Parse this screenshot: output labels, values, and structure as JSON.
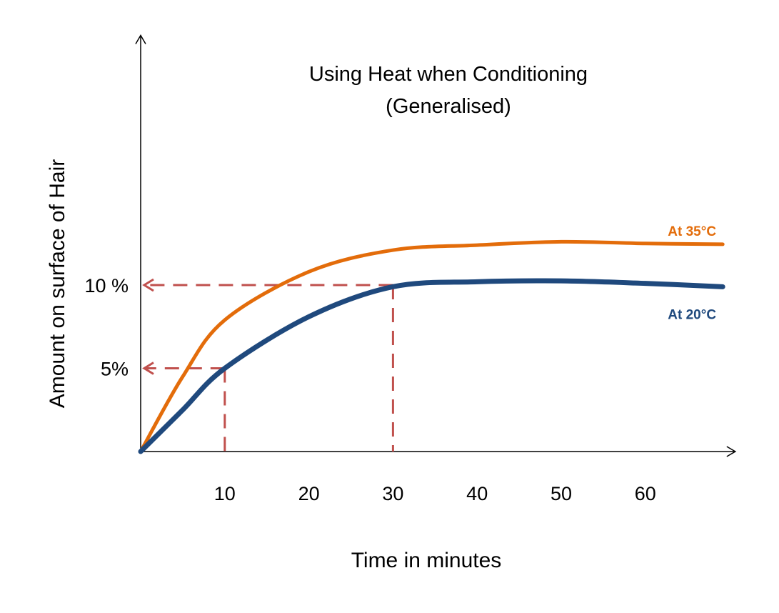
{
  "chart_data": {
    "type": "line",
    "title": [
      "Using Heat when Conditioning",
      "(Generalised)"
    ],
    "xlabel": "Time in minutes",
    "ylabel": "Amount on surface of Hair",
    "xlim": [
      0,
      70.7
    ],
    "ylim": [
      0,
      25
    ],
    "grid": false,
    "x_ticks": [
      {
        "value": 10,
        "label": "10"
      },
      {
        "value": 20,
        "label": "20"
      },
      {
        "value": 30,
        "label": "30"
      },
      {
        "value": 40,
        "label": "40"
      },
      {
        "value": 50,
        "label": "50"
      },
      {
        "value": 60,
        "label": "60"
      }
    ],
    "y_ticks": [
      {
        "value": 5,
        "label": "5%"
      },
      {
        "value": 10,
        "label": "10 %"
      }
    ],
    "series": [
      {
        "name": "At 35°C",
        "color": "#E36C0A",
        "x": [
          0,
          5,
          10,
          20,
          30,
          40,
          50,
          60,
          69.2
        ],
        "y": [
          0,
          4.5,
          7.9,
          10.8,
          12.1,
          12.4,
          12.6,
          12.5,
          12.45
        ]
      },
      {
        "name": "At 20°C",
        "color": "#1F497D",
        "x": [
          0,
          5,
          10,
          20,
          30,
          40,
          50,
          60,
          69.2
        ],
        "y": [
          0,
          2.5,
          5,
          8.1,
          9.9,
          10.2,
          10.25,
          10.1,
          9.9
        ]
      }
    ],
    "reference_lines": [
      {
        "x": 10,
        "y": 5,
        "color": "#C0504D",
        "style": "dashed"
      },
      {
        "x": 30,
        "y": 10,
        "color": "#C0504D",
        "style": "dashed"
      }
    ],
    "legend": "inline labels at right end of each line"
  }
}
